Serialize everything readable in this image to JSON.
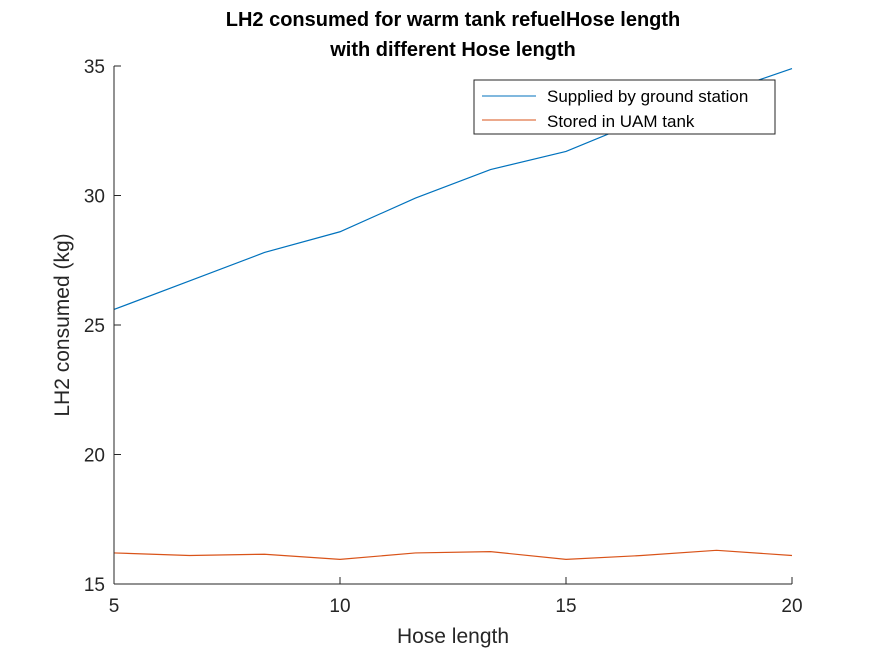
{
  "chart_data": {
    "type": "line",
    "title_lines": [
      "LH2 consumed for warm tank refuelHose length",
      "with different Hose length"
    ],
    "xlabel": "Hose length",
    "ylabel": "LH2 consumed (kg)",
    "xlim": [
      5,
      20
    ],
    "ylim": [
      15,
      35
    ],
    "xticks": [
      5,
      10,
      15,
      20
    ],
    "yticks": [
      15,
      20,
      25,
      30,
      35
    ],
    "grid": false,
    "legend_position": "top-right",
    "x": [
      5,
      6.67,
      8.33,
      10,
      11.67,
      13.33,
      15,
      16.67,
      18.33,
      20
    ],
    "series": [
      {
        "name": "Supplied by ground station",
        "color": "#0072BD",
        "values": [
          25.6,
          26.7,
          27.8,
          28.6,
          29.9,
          31.0,
          31.7,
          32.9,
          33.9,
          34.9
        ]
      },
      {
        "name": "Stored in UAM tank",
        "color": "#D95319",
        "values": [
          16.2,
          16.1,
          16.15,
          15.95,
          16.2,
          16.25,
          15.95,
          16.1,
          16.3,
          16.1
        ]
      }
    ]
  }
}
